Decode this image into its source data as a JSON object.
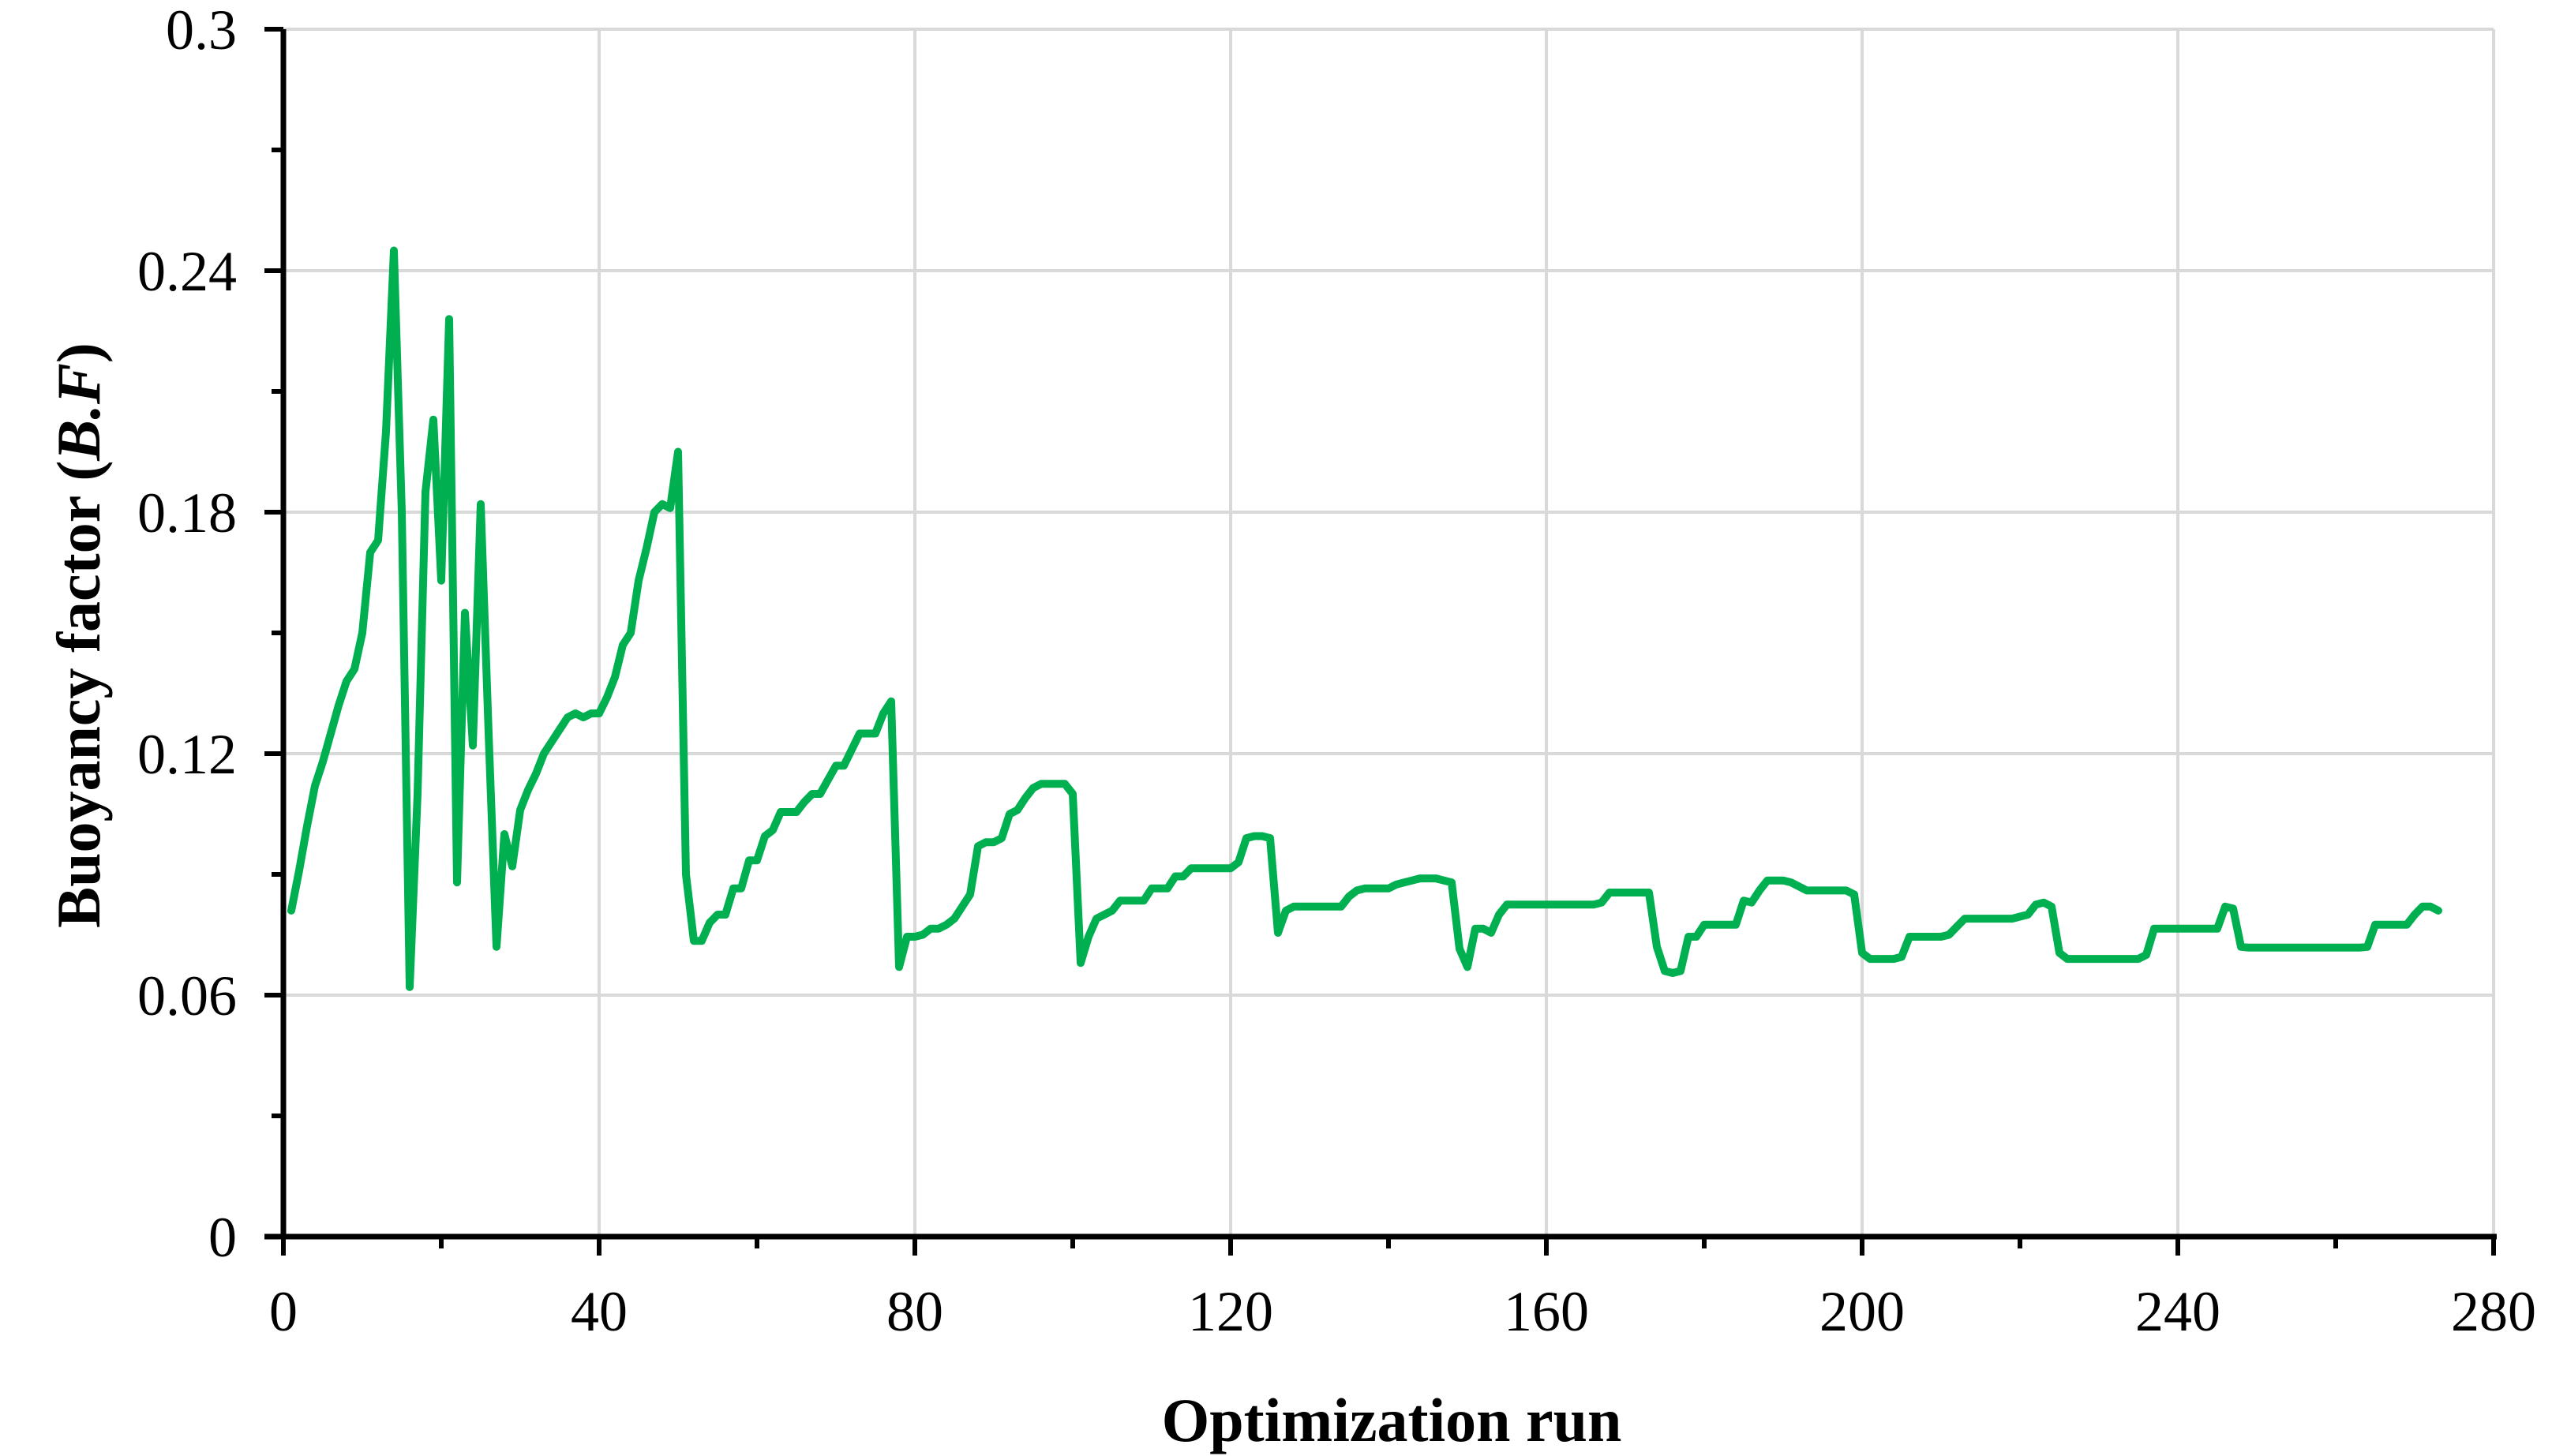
{
  "chart_data": {
    "type": "line",
    "title": "",
    "xlabel": "Optimization run",
    "ylabel": "Buoyancy factor (B.F)",
    "ylabel_prefix": "Buoyancy factor (",
    "ylabel_italic": "B.F",
    "ylabel_suffix": ")",
    "series_name": "Buoyancy factor (B.F)",
    "line_color": "#00B050",
    "gridline_color": "#D9D9D9",
    "axis_color": "#000000",
    "background_color": "#FFFFFF",
    "grid": true,
    "legend": false,
    "xlim": [
      0,
      280
    ],
    "ylim": [
      0,
      0.3
    ],
    "x_major_ticks": [
      0,
      40,
      80,
      120,
      160,
      200,
      240,
      280
    ],
    "x_minor_ticks": [
      20,
      60,
      100,
      140,
      180,
      220,
      260
    ],
    "y_major_ticks": [
      {
        "v": 0,
        "label": "0"
      },
      {
        "v": 0.06,
        "label": "0.06"
      },
      {
        "v": 0.12,
        "label": "0.12"
      },
      {
        "v": 0.18,
        "label": "0.18"
      },
      {
        "v": 0.24,
        "label": "0.24"
      },
      {
        "v": 0.3,
        "label": "0.3"
      }
    ],
    "y_minor_ticks": [
      0.03,
      0.09,
      0.15,
      0.21,
      0.27
    ],
    "x_start": 1,
    "x_step": 1,
    "values": [
      0.081,
      0.091,
      0.102,
      0.112,
      0.118,
      0.125,
      0.132,
      0.138,
      0.141,
      0.15,
      0.17,
      0.173,
      0.2,
      0.245,
      0.18,
      0.062,
      0.11,
      0.185,
      0.203,
      0.163,
      0.228,
      0.088,
      0.155,
      0.122,
      0.182,
      0.125,
      0.072,
      0.1,
      0.092,
      0.106,
      0.111,
      0.115,
      0.12,
      0.123,
      0.126,
      0.129,
      0.13,
      0.129,
      0.13,
      0.13,
      0.134,
      0.139,
      0.147,
      0.15,
      0.163,
      0.171,
      0.18,
      0.182,
      0.181,
      0.195,
      0.09,
      0.0735,
      0.0735,
      0.078,
      0.08,
      0.08,
      0.0865,
      0.0865,
      0.0935,
      0.0935,
      0.0995,
      0.101,
      0.1055,
      0.1055,
      0.1055,
      0.108,
      0.11,
      0.11,
      0.1135,
      0.117,
      0.117,
      0.121,
      0.125,
      0.125,
      0.125,
      0.13,
      0.133,
      0.067,
      0.0745,
      0.0745,
      0.075,
      0.0765,
      0.0765,
      0.0775,
      0.079,
      0.082,
      0.085,
      0.097,
      0.098,
      0.098,
      0.099,
      0.105,
      0.106,
      0.109,
      0.1115,
      0.1125,
      0.1125,
      0.1125,
      0.1125,
      0.11,
      0.068,
      0.0745,
      0.079,
      0.08,
      0.081,
      0.0835,
      0.0835,
      0.0835,
      0.0835,
      0.0865,
      0.0865,
      0.0865,
      0.0895,
      0.0895,
      0.0915,
      0.0915,
      0.0915,
      0.0915,
      0.0915,
      0.0915,
      0.093,
      0.099,
      0.0995,
      0.0995,
      0.099,
      0.0755,
      0.081,
      0.082,
      0.082,
      0.082,
      0.082,
      0.082,
      0.082,
      0.082,
      0.0845,
      0.086,
      0.0865,
      0.0865,
      0.0865,
      0.0865,
      0.0875,
      0.088,
      0.0885,
      0.089,
      0.089,
      0.089,
      0.0885,
      0.088,
      0.0715,
      0.067,
      0.0765,
      0.0765,
      0.0755,
      0.08,
      0.0825,
      0.0825,
      0.0825,
      0.0825,
      0.0825,
      0.0825,
      0.0825,
      0.0825,
      0.0825,
      0.0825,
      0.0825,
      0.0825,
      0.083,
      0.0855,
      0.0855,
      0.0855,
      0.0855,
      0.0855,
      0.0855,
      0.072,
      0.066,
      0.0655,
      0.066,
      0.0745,
      0.0745,
      0.0775,
      0.0775,
      0.0775,
      0.0775,
      0.0775,
      0.0835,
      0.083,
      0.086,
      0.0885,
      0.0885,
      0.0885,
      0.088,
      0.087,
      0.086,
      0.086,
      0.086,
      0.086,
      0.086,
      0.086,
      0.085,
      0.0705,
      0.069,
      0.069,
      0.069,
      0.069,
      0.0695,
      0.0745,
      0.0745,
      0.0745,
      0.0745,
      0.0745,
      0.075,
      0.077,
      0.079,
      0.079,
      0.079,
      0.079,
      0.079,
      0.079,
      0.079,
      0.0795,
      0.08,
      0.0825,
      0.083,
      0.082,
      0.0705,
      0.069,
      0.069,
      0.069,
      0.069,
      0.069,
      0.069,
      0.069,
      0.069,
      0.069,
      0.069,
      0.07,
      0.0765,
      0.0765,
      0.0765,
      0.0765,
      0.0765,
      0.0765,
      0.0765,
      0.0765,
      0.0765,
      0.082,
      0.0815,
      0.072,
      0.0718,
      0.0718,
      0.0718,
      0.0718,
      0.0718,
      0.0718,
      0.0718,
      0.0718,
      0.0718,
      0.0718,
      0.0718,
      0.0718,
      0.0718,
      0.0718,
      0.0718,
      0.072,
      0.0775,
      0.0775,
      0.0775,
      0.0775,
      0.0775,
      0.08,
      0.082,
      0.082,
      0.081
    ]
  }
}
